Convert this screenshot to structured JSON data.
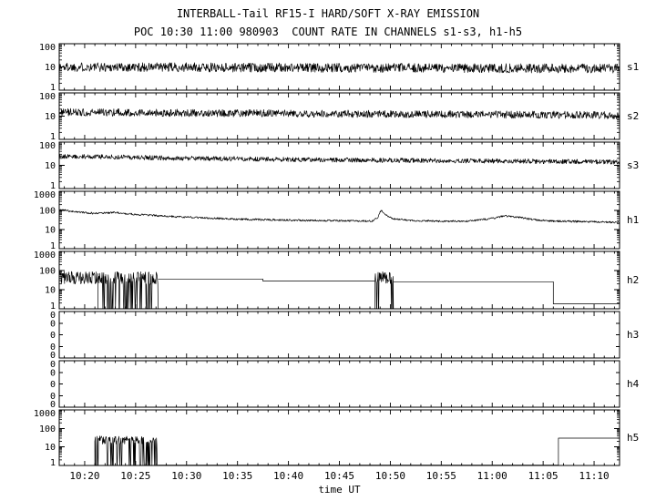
{
  "title_line1": "INTERBALL-Tail RF15-I HARD/SOFT X-RAY EMISSION",
  "title_line2": "POC 10:30 11:00 980903  COUNT RATE IN CHANNELS s1-s3, h1-h5",
  "colors": {
    "fg": "#000000",
    "bg": "#ffffff"
  },
  "chart_data": {
    "type": "line",
    "title": "INTERBALL-Tail RF15-I HARD/SOFT X-RAY EMISSION",
    "subtitle": "POC 10:30 11:00 980903  COUNT RATE IN CHANNELS s1-s3, h1-h5",
    "grid": false,
    "x_axis": {
      "label": "time UT",
      "start_minutes": 617.5,
      "end_minutes": 672.5,
      "major_tick_minutes": 5,
      "minor_tick_minutes": 1,
      "tick_minutes": [
        620,
        625,
        630,
        635,
        640,
        645,
        650,
        655,
        660,
        665,
        670
      ],
      "tick_labels": [
        "10:20",
        "10:25",
        "10:30",
        "10:35",
        "10:40",
        "10:45",
        "10:50",
        "10:55",
        "11:00",
        "11:05",
        "11:10"
      ]
    },
    "y_axis_note": "log10 count rate; s-panels 1-100, h-panels 1-1000; h3,h4 empty (all zero)",
    "panels": [
      {
        "label": "s1",
        "y_ticks": [
          "100",
          "10",
          "1"
        ],
        "log_range": [
          0,
          2
        ],
        "height": 51,
        "segments": [
          {
            "kind": "noisy",
            "base": [
              [
                617.5,
                10
              ],
              [
                672.5,
                8.5
              ]
            ],
            "jitter": 0.2,
            "step": 0.045
          }
        ]
      },
      {
        "label": "s2",
        "y_ticks": [
          "100",
          "10",
          "1"
        ],
        "log_range": [
          0,
          2
        ],
        "height": 51,
        "segments": [
          {
            "kind": "noisy",
            "base": [
              [
                617.5,
                15
              ],
              [
                640,
                13
              ],
              [
                672.5,
                11
              ]
            ],
            "jitter": 0.16,
            "step": 0.045
          }
        ]
      },
      {
        "label": "s3",
        "y_ticks": [
          "100",
          "10",
          "1"
        ],
        "log_range": [
          0,
          2
        ],
        "height": 51,
        "segments": [
          {
            "kind": "noisy",
            "base": [
              [
                617.5,
                25
              ],
              [
                630,
                20
              ],
              [
                645,
                17
              ],
              [
                672.5,
                14
              ]
            ],
            "jitter": 0.1,
            "step": 0.045
          }
        ]
      },
      {
        "label": "h1",
        "y_ticks": [
          "1000",
          "100",
          "10",
          "1"
        ],
        "log_range": [
          0,
          3
        ],
        "height": 63,
        "segments": [
          {
            "kind": "noisy",
            "jitter": 0.05,
            "step": 0.045,
            "base": [
              [
                617.5,
                110
              ],
              [
                619,
                85
              ],
              [
                621,
                70
              ],
              [
                623,
                78
              ],
              [
                625,
                62
              ],
              [
                628,
                50
              ],
              [
                632,
                40
              ],
              [
                636,
                34
              ],
              [
                640,
                31
              ],
              [
                645,
                29
              ],
              [
                648.3,
                28
              ],
              [
                648.8,
                45
              ],
              [
                649.1,
                105
              ],
              [
                649.5,
                60
              ],
              [
                650.2,
                38
              ],
              [
                652,
                30
              ],
              [
                655,
                27
              ],
              [
                658,
                28
              ],
              [
                660,
                38
              ],
              [
                661.2,
                52
              ],
              [
                662.5,
                45
              ],
              [
                664,
                33
              ],
              [
                666,
                28
              ],
              [
                669,
                26
              ],
              [
                672.5,
                24
              ]
            ]
          }
        ]
      },
      {
        "label": "h2",
        "y_ticks": [
          "1000",
          "100",
          "10",
          "1"
        ],
        "log_range": [
          0,
          3
        ],
        "height": 63,
        "segments": [
          {
            "kind": "noisy",
            "base": [
              [
                617.5,
                42
              ],
              [
                621.3,
                42
              ]
            ],
            "jitter": 0.33,
            "step": 0.04
          },
          {
            "kind": "burst",
            "base": [
              [
                621.3,
                42
              ],
              [
                627.2,
                40
              ]
            ],
            "jitter": 0.33,
            "step": 0.04,
            "dropout_prob": 0.15,
            "floor": 1.03
          },
          {
            "kind": "line",
            "points": [
              [
                627.2,
                36
              ],
              [
                637.5,
                36
              ],
              [
                637.5,
                28
              ],
              [
                648.5,
                28
              ]
            ]
          },
          {
            "kind": "burst",
            "base": [
              [
                648.5,
                45
              ],
              [
                650.3,
                40
              ]
            ],
            "jitter": 0.33,
            "step": 0.03,
            "dropout_prob": 0.15,
            "floor": 1.03
          },
          {
            "kind": "line",
            "points": [
              [
                650.3,
                26
              ],
              [
                666,
                26
              ],
              [
                666,
                1.8
              ],
              [
                672.5,
                1.8
              ]
            ]
          }
        ]
      },
      {
        "label": "h3",
        "y_ticks": [
          "0",
          "0",
          "0",
          "0",
          "0"
        ],
        "log_range": null,
        "height": 51,
        "segments": []
      },
      {
        "label": "h4",
        "y_ticks": [
          "0",
          "0",
          "0",
          "0",
          "0"
        ],
        "log_range": null,
        "height": 51,
        "segments": []
      },
      {
        "label": "h5",
        "y_ticks": [
          "1000",
          "100",
          "10",
          "1"
        ],
        "log_range": [
          0,
          3
        ],
        "height": 61,
        "segments": [
          {
            "kind": "burst",
            "base": [
              [
                621.0,
                24
              ],
              [
                627.2,
                22
              ]
            ],
            "jitter": 0.22,
            "step": 0.04,
            "dropout_prob": 0.18,
            "floor": 1.03
          },
          {
            "kind": "line",
            "points": [
              [
                627.2,
                1.05
              ],
              [
                666.5,
                1.05
              ],
              [
                666.5,
                30
              ],
              [
                672.5,
                30
              ]
            ]
          }
        ]
      }
    ]
  }
}
